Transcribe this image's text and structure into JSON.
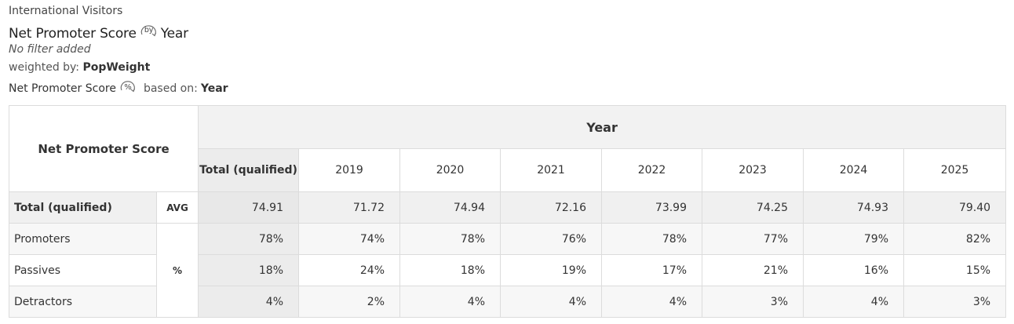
{
  "header": {
    "group": "International Visitors",
    "metric": "Net Promoter Score",
    "by_badge": "by",
    "by_dimension": "Year",
    "filter": "No filter added",
    "weighted_label": "weighted by:",
    "weight": "PopWeight",
    "base_metric": "Net Promoter Score",
    "pct_badge": "%",
    "based_on_label": "based on:",
    "based_on": "Year"
  },
  "table": {
    "corner": "Net Promoter Score",
    "group_header": "Year",
    "columns": [
      "Total (qualified)",
      "2019",
      "2020",
      "2021",
      "2022",
      "2023",
      "2024",
      "2025"
    ],
    "summary_row": {
      "label": "Total (qualified)",
      "stat": "AVG",
      "values": [
        "74.91",
        "71.72",
        "74.94",
        "72.16",
        "73.99",
        "74.25",
        "74.93",
        "79.40"
      ]
    },
    "pct_stat": "%",
    "rows": [
      {
        "label": "Promoters",
        "values": [
          "78%",
          "74%",
          "78%",
          "76%",
          "78%",
          "77%",
          "79%",
          "82%"
        ]
      },
      {
        "label": "Passives",
        "values": [
          "18%",
          "24%",
          "18%",
          "19%",
          "17%",
          "21%",
          "16%",
          "15%"
        ]
      },
      {
        "label": "Detractors",
        "values": [
          "4%",
          "2%",
          "4%",
          "4%",
          "4%",
          "3%",
          "4%",
          "3%"
        ]
      }
    ]
  },
  "colors": {
    "header_bg": "#f2f2f2",
    "total_col_bg": "#ececec",
    "border": "#dcdcdc"
  }
}
